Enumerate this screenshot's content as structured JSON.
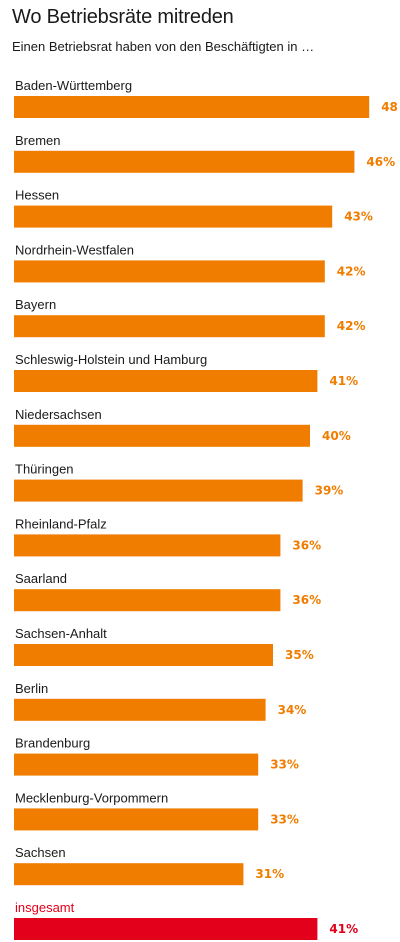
{
  "chart_data": {
    "type": "bar",
    "orientation": "horizontal",
    "title": "Wo Betriebsräte mitreden",
    "subtitle": "Einen Betriebsrat haben von den Beschäftigten in …",
    "categories": [
      "Baden-Württemberg",
      "Bremen",
      "Hessen",
      "Nordrhein-Westfalen",
      "Bayern",
      "Schleswig-Holstein und Hamburg",
      "Niedersachsen",
      "Thüringen",
      "Rheinland-Pfalz",
      "Saarland",
      "Sachsen-Anhalt",
      "Berlin",
      "Brandenburg",
      "Mecklenburg-Vorpommern",
      "Sachsen",
      "insgesamt"
    ],
    "values": [
      48,
      46,
      43,
      42,
      42,
      41,
      40,
      39,
      36,
      36,
      35,
      34,
      33,
      33,
      31,
      41
    ],
    "value_labels": [
      "48",
      "46%",
      "43%",
      "42%",
      "42%",
      "41%",
      "40%",
      "39%",
      "36%",
      "36%",
      "35%",
      "34%",
      "33%",
      "33%",
      "31%",
      "41%"
    ],
    "unit": "%",
    "colors": {
      "bar": "#f07d00",
      "total_bar": "#e2001a",
      "text": "#1a1a1a"
    },
    "grid": false,
    "legend": "none"
  }
}
